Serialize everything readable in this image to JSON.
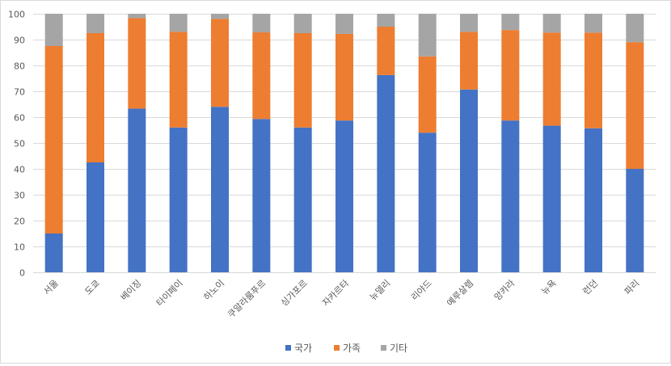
{
  "chart_data": {
    "type": "bar",
    "stacked": true,
    "categories": [
      "서울",
      "도쿄",
      "베이징",
      "타이페이",
      "하노이",
      "쿠알라룸푸르",
      "싱가포르",
      "자카르타",
      "뉴델리",
      "리야드",
      "예루살렘",
      "앙카라",
      "뉴욕",
      "런던",
      "파리"
    ],
    "series": [
      {
        "name": "국가",
        "color": "#4472c4",
        "values": [
          15,
          42.5,
          63.3,
          56,
          64,
          59.3,
          56,
          58.7,
          76.3,
          54,
          70.7,
          58.7,
          56.7,
          55.7,
          40
        ]
      },
      {
        "name": "가족",
        "color": "#ed7d31",
        "values": [
          72.5,
          50,
          35,
          37,
          34,
          33.5,
          36.5,
          33.5,
          18.7,
          29.5,
          22.3,
          35,
          36,
          37,
          49
        ]
      },
      {
        "name": "기타",
        "color": "#a5a5a5",
        "values": [
          12.5,
          7.5,
          1.7,
          7,
          2,
          7.2,
          7.5,
          7.8,
          5,
          16.5,
          7,
          6.3,
          7.3,
          7.3,
          11
        ]
      }
    ],
    "ylim": [
      0,
      100
    ],
    "yticks": [
      0,
      10,
      20,
      30,
      40,
      50,
      60,
      70,
      80,
      90,
      100
    ],
    "grid": true,
    "legend_position": "bottom"
  }
}
